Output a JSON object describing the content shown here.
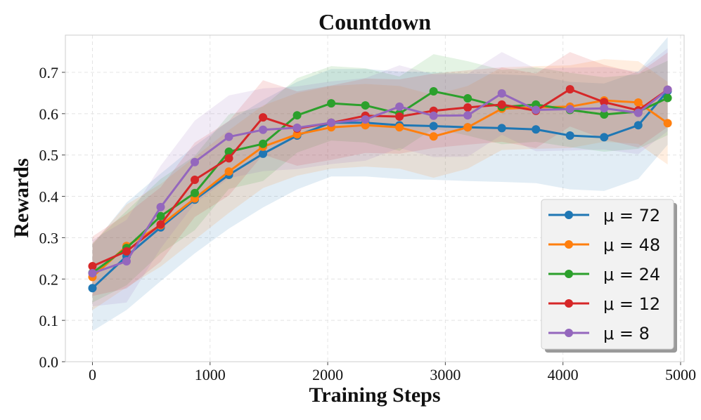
{
  "chart_data": {
    "type": "line",
    "title": "Countdown",
    "xlabel": "Training Steps",
    "ylabel": "Rewards",
    "xlim": [
      -230,
      5030
    ],
    "ylim": [
      0.0,
      0.79
    ],
    "xticks": [
      0,
      1000,
      2000,
      3000,
      4000,
      5000
    ],
    "yticks": [
      0.0,
      0.1,
      0.2,
      0.3,
      0.4,
      0.5,
      0.6,
      0.7
    ],
    "xtick_labels": [
      "0",
      "1000",
      "2000",
      "3000",
      "4000",
      "5000"
    ],
    "ytick_labels": [
      "0.0",
      "0.1",
      "0.2",
      "0.3",
      "0.4",
      "0.5",
      "0.6",
      "0.7"
    ],
    "grid": true,
    "legend_position": "bottom-right",
    "x": [
      0,
      290,
      580,
      870,
      1160,
      1450,
      1740,
      2030,
      2320,
      2610,
      2900,
      3190,
      3480,
      3770,
      4060,
      4350,
      4640,
      4890
    ],
    "series": [
      {
        "name": "μ = 72",
        "color": "#1f77b4",
        "values": [
          0.178,
          0.255,
          0.325,
          0.392,
          0.452,
          0.503,
          0.547,
          0.578,
          0.578,
          0.572,
          0.57,
          0.567,
          0.565,
          0.562,
          0.547,
          0.543,
          0.572,
          0.655
        ],
        "band": 0.13
      },
      {
        "name": "μ = 48",
        "color": "#ff7f0e",
        "values": [
          0.205,
          0.28,
          0.33,
          0.395,
          0.46,
          0.52,
          0.55,
          0.567,
          0.572,
          0.567,
          0.545,
          0.567,
          0.612,
          0.615,
          0.617,
          0.632,
          0.627,
          0.577
        ],
        "band": 0.1
      },
      {
        "name": "μ = 24",
        "color": "#2ca02c",
        "values": [
          0.215,
          0.275,
          0.352,
          0.408,
          0.508,
          0.527,
          0.596,
          0.625,
          0.62,
          0.6,
          0.654,
          0.637,
          0.616,
          0.622,
          0.609,
          0.598,
          0.605,
          0.638
        ],
        "band": 0.09
      },
      {
        "name": "μ = 12",
        "color": "#d62728",
        "values": [
          0.231,
          0.267,
          0.332,
          0.44,
          0.492,
          0.591,
          0.564,
          0.578,
          0.595,
          0.593,
          0.607,
          0.615,
          0.622,
          0.607,
          0.659,
          0.628,
          0.608,
          0.658
        ],
        "band": 0.09
      },
      {
        "name": "μ = 8",
        "color": "#9467bd",
        "values": [
          0.214,
          0.243,
          0.374,
          0.483,
          0.544,
          0.561,
          0.566,
          0.578,
          0.586,
          0.617,
          0.595,
          0.596,
          0.649,
          0.609,
          0.611,
          0.613,
          0.602,
          0.658
        ],
        "band": 0.1
      }
    ]
  },
  "legend": {
    "items": [
      {
        "label": "μ = 72"
      },
      {
        "label": "μ = 48"
      },
      {
        "label": "μ = 24"
      },
      {
        "label": "μ = 12"
      },
      {
        "label": "μ = 8"
      }
    ]
  }
}
